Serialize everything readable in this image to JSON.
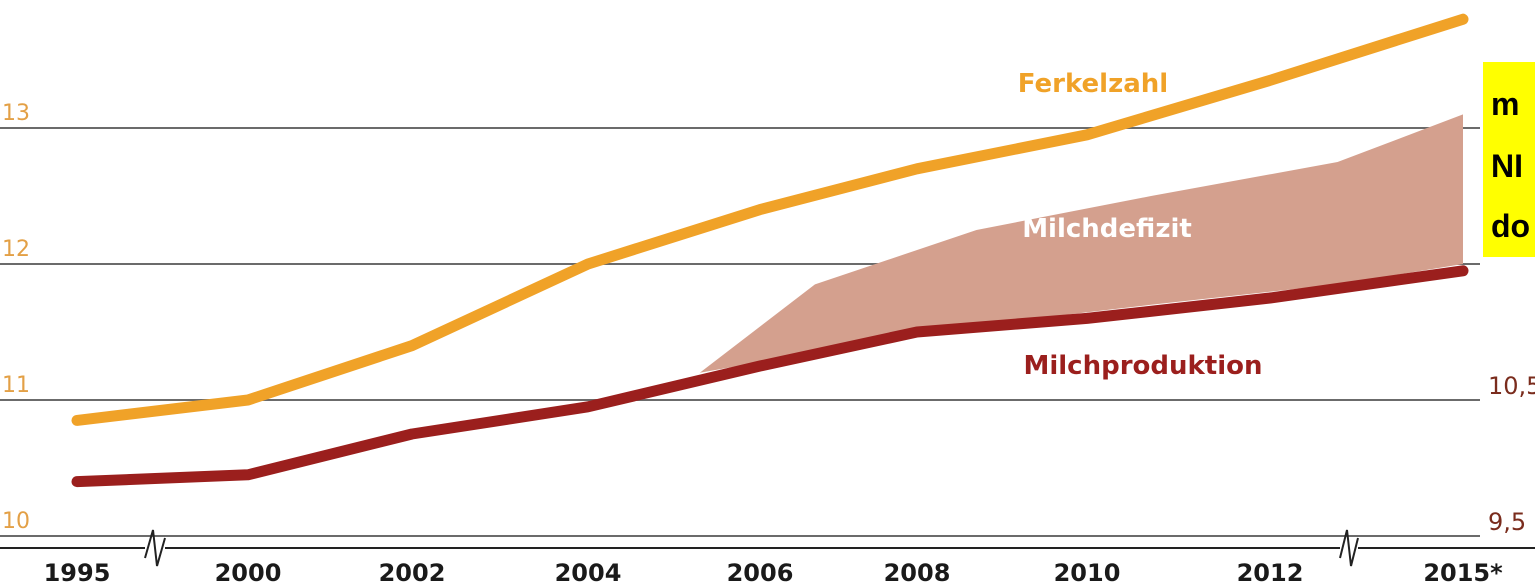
{
  "colors": {
    "ferkelzahl": "#f0a228",
    "milchproduktion": "#9b1f1d",
    "milchdefizit": "#d4a08e",
    "left_axis_text": "#e3a046",
    "right_axis_text": "#7a2c1d",
    "gridline": "#6b6b6b",
    "callout_bg": "#ffff00"
  },
  "callout": {
    "lines": [
      "m",
      "NI",
      "do"
    ]
  },
  "chart_data": {
    "type": "line",
    "x": [
      "1995",
      "2000",
      "2002",
      "2004",
      "2006",
      "2008",
      "2010",
      "2012",
      "2015*"
    ],
    "left_axis": {
      "ticks": [
        "10",
        "11",
        "12",
        "13"
      ],
      "range": [
        9.8,
        13.9
      ]
    },
    "right_axis": {
      "visible_ticks": [
        "9,5",
        "10,5"
      ]
    },
    "axis_breaks": [
      "1995-2000",
      "2012-2015*"
    ],
    "grid": true,
    "series": [
      {
        "name": "Ferkelzahl",
        "axis": "left",
        "values": [
          10.85,
          11.0,
          11.4,
          12.0,
          12.4,
          12.7,
          12.95,
          13.35,
          13.8
        ]
      },
      {
        "name": "Milchproduktion",
        "axis": "left",
        "values": [
          10.4,
          10.45,
          10.75,
          10.95,
          11.25,
          11.5,
          11.6,
          11.75,
          11.95
        ]
      }
    ],
    "band": {
      "name": "Milchdefizit",
      "x_start": 3.65,
      "upper": [
        [
          3.65,
          11.2
        ],
        [
          4.35,
          11.85
        ],
        [
          5.35,
          12.25
        ],
        [
          6.35,
          12.5
        ],
        [
          7.35,
          12.75
        ],
        [
          8.15,
          13.1
        ],
        [
          8.75,
          13.55
        ]
      ],
      "lower": [
        [
          8.75,
          12.2
        ],
        [
          8.15,
          12.0
        ],
        [
          7.35,
          11.85
        ],
        [
          6.35,
          11.7
        ],
        [
          5.35,
          11.55
        ],
        [
          4.35,
          11.35
        ],
        [
          3.65,
          11.2
        ]
      ]
    }
  }
}
